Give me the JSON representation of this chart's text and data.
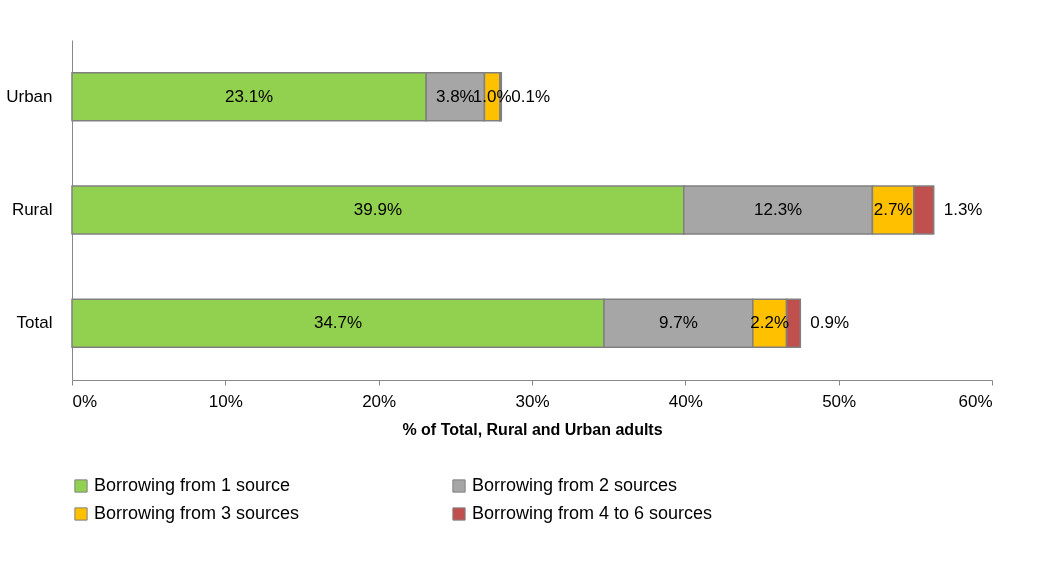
{
  "chart_data": {
    "type": "bar",
    "orientation": "horizontal",
    "stacked": true,
    "xlabel": "% of Total, Rural and Urban adults",
    "categories": [
      "Urban",
      "Rural",
      "Total"
    ],
    "series": [
      {
        "name": "Borrowing from 1 source",
        "color": "#92d050",
        "values": [
          23.1,
          39.9,
          34.7
        ],
        "value_labels": [
          "23.1%",
          "39.9%",
          "34.7%"
        ]
      },
      {
        "name": "Borrowing from 2 sources",
        "color": "#a6a6a6",
        "values": [
          3.8,
          12.3,
          9.7
        ],
        "value_labels": [
          "3.8%",
          "12.3%",
          "9.7%"
        ]
      },
      {
        "name": "Borrowing from 3 sources",
        "color": "#ffc000",
        "values": [
          1.0,
          2.7,
          2.2
        ],
        "value_labels": [
          "1.0%",
          "2.7%",
          "2.2%"
        ]
      },
      {
        "name": "Borrowing from 4 to 6  sources",
        "color": "#c0504d",
        "values": [
          0.1,
          1.3,
          0.9
        ],
        "value_labels": [
          "0.1%",
          "1.3%",
          "0.9%"
        ]
      }
    ],
    "xlim": [
      0,
      60
    ],
    "xticks": [
      {
        "value": 0,
        "label": "0%"
      },
      {
        "value": 10,
        "label": "10%"
      },
      {
        "value": 20,
        "label": "20%"
      },
      {
        "value": 30,
        "label": "30%"
      },
      {
        "value": 40,
        "label": "40%"
      },
      {
        "value": 50,
        "label": "50%"
      },
      {
        "value": 60,
        "label": "60%"
      }
    ],
    "grid": false,
    "legend": "bottom"
  }
}
